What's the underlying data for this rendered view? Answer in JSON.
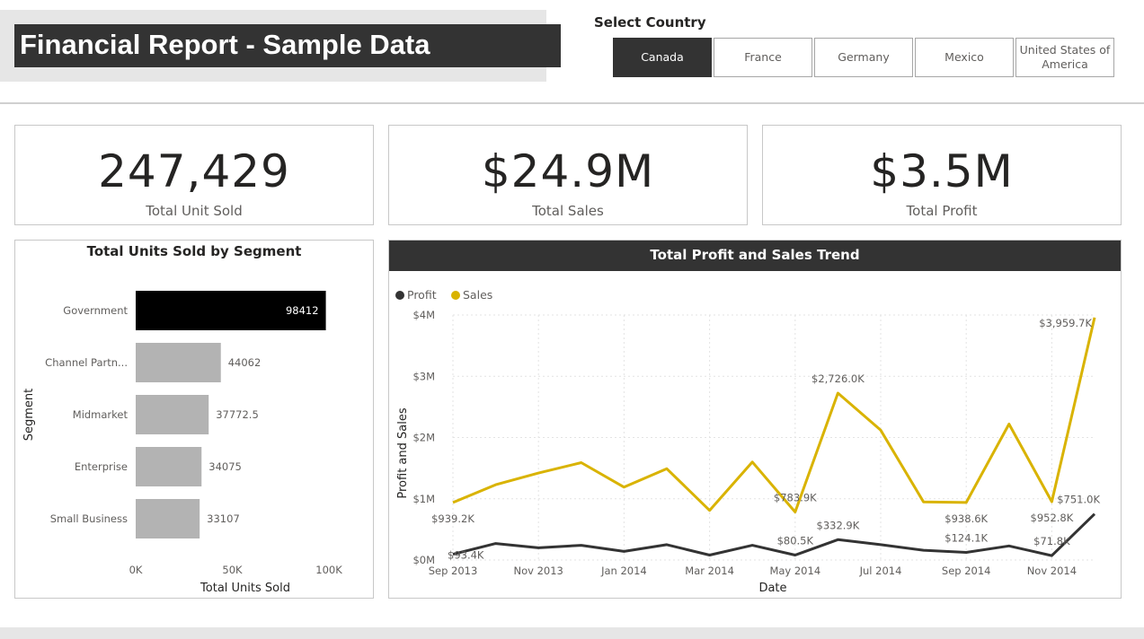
{
  "header": {
    "title": "Financial Report - Sample Data"
  },
  "slicer": {
    "title": "Select Country",
    "options": [
      "Canada",
      "France",
      "Germany",
      "Mexico",
      "United States of America"
    ],
    "selected": "Canada"
  },
  "kpis": [
    {
      "value": "247,429",
      "label": "Total Unit Sold"
    },
    {
      "value": "$24.9M",
      "label": "Total Sales"
    },
    {
      "value": "$3.5M",
      "label": "Total Profit"
    }
  ],
  "chart_data": [
    {
      "type": "bar",
      "orientation": "horizontal",
      "title": "Total Units Sold by Segment",
      "xlabel": "Total Units Sold",
      "ylabel": "Segment",
      "categories": [
        "Government",
        "Channel Partn...",
        "Midmarket",
        "Enterprise",
        "Small Business"
      ],
      "values": [
        98412,
        44062,
        37772.5,
        34075,
        33107
      ],
      "value_labels": [
        "98412",
        "44062",
        "37772.5",
        "34075",
        "33107"
      ],
      "highlighted_index": 0,
      "xlim": [
        0,
        100000
      ],
      "xticks": [
        0,
        50000,
        100000
      ],
      "xtick_labels": [
        "0K",
        "50K",
        "100K"
      ],
      "colors": {
        "highlight": "#000000",
        "bar": "#b3b3b3"
      }
    },
    {
      "type": "line",
      "title": "Total Profit and Sales Trend",
      "xlabel": "Date",
      "ylabel": "Profit and Sales",
      "legend": [
        {
          "name": "Profit",
          "color": "#333333"
        },
        {
          "name": "Sales",
          "color": "#d9b300"
        }
      ],
      "legend_position": "top-left",
      "x": [
        "2013-09",
        "2013-10",
        "2013-11",
        "2013-12",
        "2014-01",
        "2014-02",
        "2014-03",
        "2014-04",
        "2014-05",
        "2014-06",
        "2014-07",
        "2014-08",
        "2014-09",
        "2014-10",
        "2014-11",
        "2014-12"
      ],
      "xtick_labels": [
        "Sep 2013",
        "Nov 2013",
        "Jan 2014",
        "Mar 2014",
        "May 2014",
        "Jul 2014",
        "Sep 2014",
        "Nov 2014"
      ],
      "xtick_indices": [
        0,
        2,
        4,
        6,
        8,
        10,
        12,
        14
      ],
      "ylim": [
        0,
        4000000
      ],
      "yticks": [
        0,
        1000000,
        2000000,
        3000000,
        4000000
      ],
      "ytick_labels": [
        "$0M",
        "$1M",
        "$2M",
        "$3M",
        "$4M"
      ],
      "series": [
        {
          "name": "Sales",
          "color": "#d9b300",
          "values": [
            939200,
            1230000,
            1420000,
            1590000,
            1190000,
            1490000,
            810000,
            1600000,
            783900,
            2726000,
            2120000,
            950000,
            938600,
            2220000,
            952800,
            3959700
          ]
        },
        {
          "name": "Profit",
          "color": "#333333",
          "values": [
            93400,
            270000,
            200000,
            240000,
            140000,
            250000,
            80000,
            240000,
            80500,
            332900,
            250000,
            160000,
            124100,
            230000,
            71800,
            751000
          ]
        }
      ],
      "annotations": [
        {
          "series": "Sales",
          "index": 0,
          "text": "$939.2K",
          "placement": "below"
        },
        {
          "series": "Sales",
          "index": 8,
          "text": "$783.9K",
          "placement": "above"
        },
        {
          "series": "Sales",
          "index": 9,
          "text": "$2,726.0K",
          "placement": "above"
        },
        {
          "series": "Sales",
          "index": 12,
          "text": "$938.6K",
          "placement": "below"
        },
        {
          "series": "Sales",
          "index": 14,
          "text": "$952.8K",
          "placement": "below"
        },
        {
          "series": "Sales",
          "index": 15,
          "text": "$3,959.7K",
          "placement": "left"
        },
        {
          "series": "Profit",
          "index": 0,
          "text": "$93.4K",
          "placement": "at"
        },
        {
          "series": "Profit",
          "index": 8,
          "text": "$80.5K",
          "placement": "above"
        },
        {
          "series": "Profit",
          "index": 9,
          "text": "$332.9K",
          "placement": "above"
        },
        {
          "series": "Profit",
          "index": 12,
          "text": "$124.1K",
          "placement": "above"
        },
        {
          "series": "Profit",
          "index": 14,
          "text": "$71.8K",
          "placement": "above"
        },
        {
          "series": "Profit",
          "index": 15,
          "text": "$751.0K",
          "placement": "above"
        }
      ]
    }
  ]
}
